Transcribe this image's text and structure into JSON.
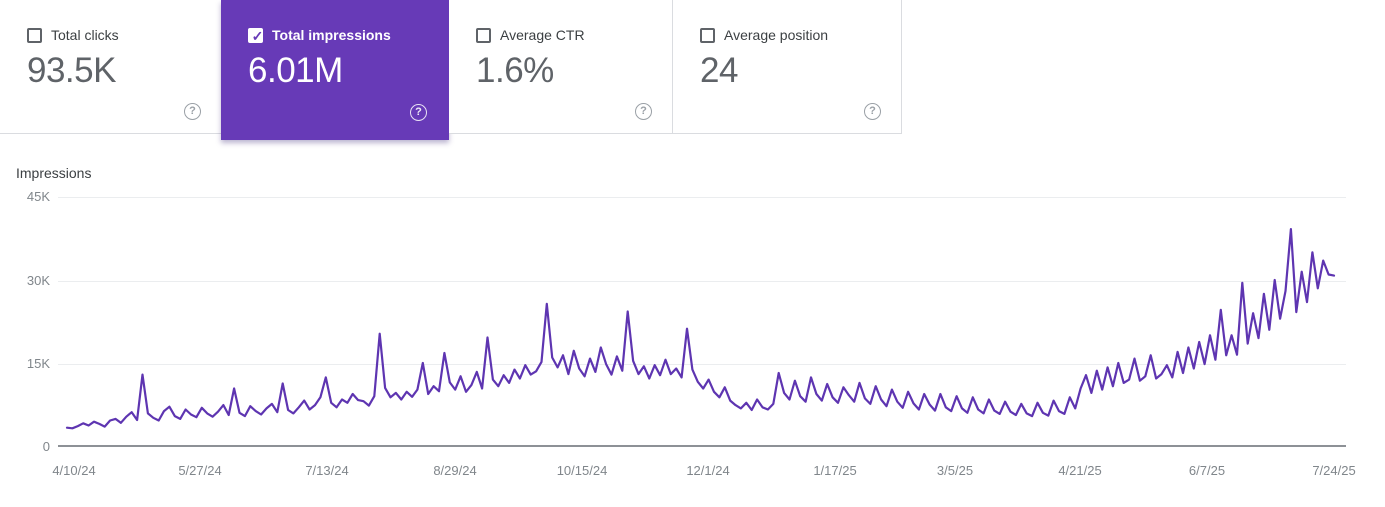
{
  "cards": [
    {
      "label": "Total clicks",
      "value": "93.5K",
      "checked": false,
      "selected": false
    },
    {
      "label": "Total impressions",
      "value": "6.01M",
      "checked": true,
      "selected": true
    },
    {
      "label": "Average CTR",
      "value": "1.6%",
      "checked": false,
      "selected": false
    },
    {
      "label": "Average position",
      "value": "24",
      "checked": false,
      "selected": false
    }
  ],
  "icons": {
    "help": "?",
    "checkmark": "✓"
  },
  "colors": {
    "selected_card_bg": "#673ab7",
    "line": "#5e35b1",
    "value_text": "#5f6368",
    "label_text": "#3c4043",
    "axis_text": "#80868b",
    "gridline": "#ebedef",
    "card_border": "#dadce0"
  },
  "chart": {
    "axis_title": "Impressions"
  },
  "chart_data": {
    "type": "line",
    "title": "Impressions",
    "series_name": "Total impressions",
    "date_range": [
      "4/10/24",
      "7/24/25"
    ],
    "x_tick_labels": [
      "4/10/24",
      "5/27/24",
      "7/13/24",
      "8/29/24",
      "10/15/24",
      "12/1/24",
      "1/17/25",
      "3/5/25",
      "4/21/25",
      "6/7/25",
      "7/24/25"
    ],
    "y_tick_labels": [
      "0",
      "15K",
      "30K",
      "45K"
    ],
    "ylim": [
      0,
      45000
    ],
    "grid": "horizontal",
    "legend": "none",
    "line_color": "#5e35b1",
    "sampling": "daily series sampled approximately every 2 days; values in thousands of impressions",
    "values_k": [
      3.3,
      3.2,
      3.6,
      4.1,
      3.7,
      4.4,
      4.0,
      3.5,
      4.6,
      4.9,
      4.2,
      5.3,
      6.1,
      4.7,
      12.9,
      5.9,
      5.1,
      4.6,
      6.3,
      7.1,
      5.4,
      4.9,
      6.6,
      5.7,
      5.2,
      6.9,
      5.9,
      5.3,
      6.2,
      7.4,
      5.6,
      10.4,
      6.0,
      5.4,
      7.2,
      6.3,
      5.7,
      6.8,
      7.6,
      6.1,
      11.3,
      6.5,
      5.9,
      7.0,
      8.2,
      6.6,
      7.4,
      8.8,
      12.4,
      7.8,
      7.0,
      8.4,
      7.8,
      9.4,
      8.3,
      8.1,
      7.3,
      9.0,
      20.3,
      10.5,
      8.8,
      9.6,
      8.4,
      9.8,
      8.9,
      10.2,
      15.0,
      9.4,
      10.8,
      9.9,
      16.8,
      11.5,
      10.2,
      12.6,
      9.8,
      11.0,
      13.4,
      10.4,
      19.6,
      12.0,
      10.8,
      12.8,
      11.4,
      13.8,
      12.2,
      14.6,
      12.9,
      13.5,
      15.2,
      25.7,
      16.0,
      14.2,
      16.4,
      13.0,
      17.2,
      14.0,
      12.6,
      15.8,
      13.4,
      17.8,
      14.8,
      12.9,
      16.2,
      13.6,
      24.3,
      15.4,
      13.0,
      14.4,
      12.2,
      14.6,
      12.8,
      15.6,
      13.0,
      14.0,
      12.4,
      21.2,
      13.8,
      11.6,
      10.4,
      12.0,
      9.8,
      8.8,
      10.6,
      8.2,
      7.4,
      6.8,
      7.8,
      6.5,
      8.4,
      7.0,
      6.6,
      7.6,
      13.2,
      9.6,
      8.4,
      11.8,
      9.0,
      8.0,
      12.4,
      9.4,
      8.2,
      11.2,
      8.8,
      7.8,
      10.6,
      9.2,
      8.0,
      11.4,
      8.6,
      7.6,
      10.8,
      8.4,
      7.2,
      10.2,
      8.0,
      6.9,
      9.8,
      7.7,
      6.6,
      9.4,
      7.5,
      6.4,
      9.4,
      7.0,
      6.3,
      9.0,
      6.8,
      6.0,
      8.8,
      6.6,
      5.9,
      8.4,
      6.4,
      5.8,
      8.0,
      6.2,
      5.6,
      7.6,
      5.9,
      5.4,
      7.8,
      6.0,
      5.5,
      8.2,
      6.3,
      5.8,
      8.8,
      6.8,
      10.4,
      12.8,
      9.6,
      13.6,
      10.2,
      14.2,
      10.8,
      15.0,
      11.4,
      12.0,
      15.8,
      11.8,
      12.6,
      16.4,
      12.2,
      13.0,
      14.6,
      12.4,
      17.0,
      13.2,
      17.8,
      14.0,
      18.8,
      14.8,
      20.0,
      15.6,
      24.6,
      16.4,
      20.0,
      16.5,
      29.5,
      18.5,
      24.0,
      19.5,
      27.5,
      21.0,
      30.0,
      23.0,
      28.0,
      39.2,
      24.2,
      31.5,
      26.0,
      35.0,
      28.5,
      33.5,
      31.0,
      30.8
    ]
  }
}
